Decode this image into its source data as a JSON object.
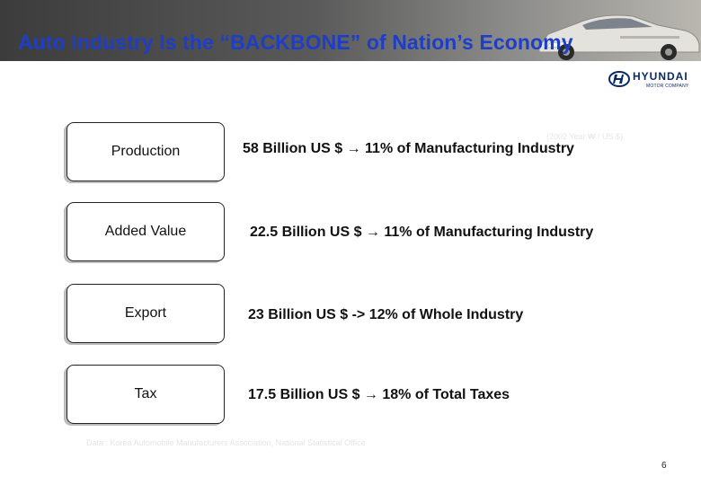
{
  "slide": {
    "title": "Auto Industry Is the “BACKBONE” of Nation’s Economy",
    "unit_note": "(2002 Year  ₩ / US $)",
    "source": "Data : Korea Automobile Manufacturers Association, National Statistical Office",
    "page_number": "6"
  },
  "logo": {
    "brand": "HYUNDAI",
    "subtitle": "MOTOR COMPANY"
  },
  "rows": [
    {
      "label": "Production",
      "value": "58 Billion US $ → 11% of Manufacturing Industry"
    },
    {
      "label": "Added Value",
      "value": "22.5 Billion US $ → 11% of Manufacturing Industry"
    },
    {
      "label": "Export",
      "value": "23 Billion US $ -> 12% of Whole Industry"
    },
    {
      "label": "Tax",
      "value": "17.5 Billion US $ → 18% of Total Taxes"
    }
  ],
  "colors": {
    "title": "#1e3ec8",
    "brand": "#0a2a66"
  },
  "icons": [
    "car-image",
    "hyundai-logo-icon"
  ]
}
